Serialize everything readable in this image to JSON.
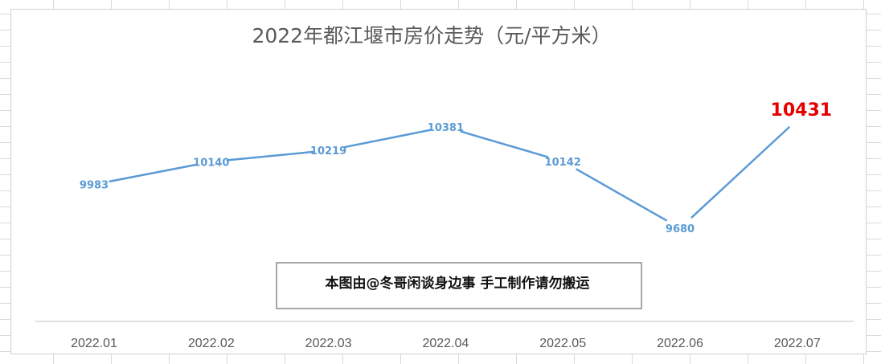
{
  "chart_data": {
    "type": "line",
    "title": "2022年都江堰市房价走势（元/平方米）",
    "categories": [
      "2022.01",
      "2022.02",
      "2022.03",
      "2022.04",
      "2022.05",
      "2022.06",
      "2022.07"
    ],
    "series": [
      {
        "values": [
          9983,
          10140,
          10219,
          10381,
          10142,
          9680,
          10431
        ]
      }
    ],
    "data_labels": [
      "9983",
      "10140",
      "10219",
      "10381",
      "10142",
      "9680",
      "10431"
    ],
    "highlight_index": 6,
    "grid": false,
    "legend": "none",
    "colors": {
      "line": "#5b9bd5",
      "highlight": "#e60000",
      "text": "#595959"
    }
  },
  "annotation": {
    "text": "本图由@冬哥闲谈身边事 手工制作请勿搬运"
  }
}
